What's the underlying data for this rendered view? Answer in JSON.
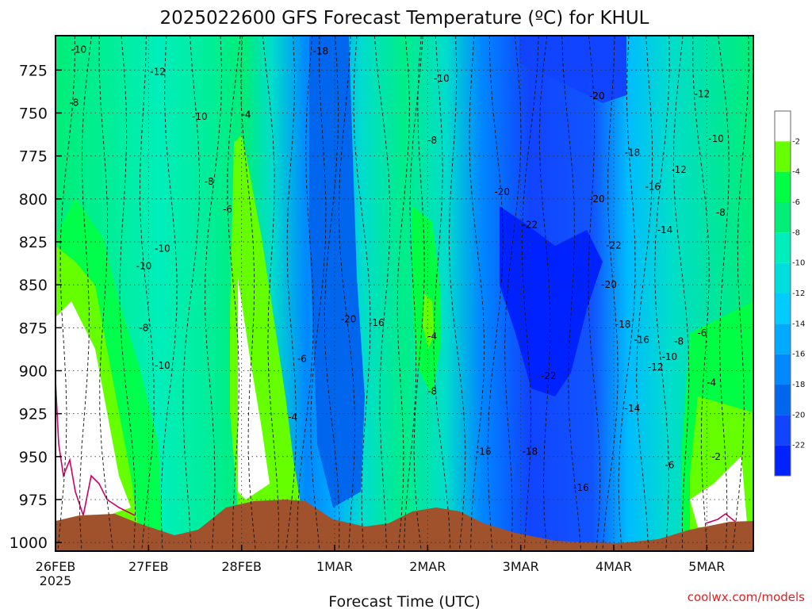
{
  "chart_data": {
    "type": "contour",
    "title": "2025022600 GFS Forecast Temperature (ºC) for KHUL",
    "xlabel": "Forecast Time (UTC)",
    "ylabel": "",
    "x_ticks": [
      "26FEB",
      "27FEB",
      "28FEB",
      "1MAR",
      "2MAR",
      "3MAR",
      "4MAR",
      "5MAR"
    ],
    "x_tick_sub": "2025",
    "x_range_days": [
      0,
      7.5
    ],
    "y_ticks": [
      725,
      750,
      775,
      800,
      825,
      850,
      875,
      900,
      925,
      950,
      975,
      1000
    ],
    "y_range_hpa": [
      1005,
      705
    ],
    "y_direction": "pressure decreasing upward",
    "grid": true,
    "colorbar": {
      "labels": [
        "-2",
        "-4",
        "-6",
        "-8",
        "-10",
        "-12",
        "-14",
        "-16",
        "-18",
        "-20",
        "-22"
      ],
      "colors": [
        "#ffffff",
        "#66ff00",
        "#00ff44",
        "#00ee77",
        "#00eebb",
        "#00dddd",
        "#00ccff",
        "#00aaff",
        "#0088ff",
        "#0066ee",
        "#1144ff",
        "#0022ff"
      ]
    },
    "contour_labels": [
      {
        "text": "-10",
        "d": 0.25,
        "p": 713
      },
      {
        "text": "-12",
        "d": 1.1,
        "p": 726
      },
      {
        "text": "-8",
        "d": 0.2,
        "p": 744
      },
      {
        "text": "-10",
        "d": 1.55,
        "p": 752
      },
      {
        "text": "-4",
        "d": 2.05,
        "p": 751
      },
      {
        "text": "-8",
        "d": 1.65,
        "p": 790
      },
      {
        "text": "-6",
        "d": 1.85,
        "p": 806
      },
      {
        "text": "-10",
        "d": 1.15,
        "p": 829
      },
      {
        "text": "-10",
        "d": 0.95,
        "p": 839
      },
      {
        "text": "-8",
        "d": 0.95,
        "p": 875
      },
      {
        "text": "-10",
        "d": 1.15,
        "p": 897
      },
      {
        "text": "-6",
        "d": 2.65,
        "p": 893
      },
      {
        "text": "-4",
        "d": 2.55,
        "p": 927
      },
      {
        "text": "-18",
        "d": 2.85,
        "p": 714
      },
      {
        "text": "-10",
        "d": 4.15,
        "p": 730
      },
      {
        "text": "-8",
        "d": 4.05,
        "p": 766
      },
      {
        "text": "-20",
        "d": 3.15,
        "p": 870
      },
      {
        "text": "-16",
        "d": 3.45,
        "p": 872
      },
      {
        "text": "-4",
        "d": 4.05,
        "p": 880
      },
      {
        "text": "-8",
        "d": 4.05,
        "p": 912
      },
      {
        "text": "-16",
        "d": 4.6,
        "p": 947
      },
      {
        "text": "-18",
        "d": 5.1,
        "p": 947
      },
      {
        "text": "-20",
        "d": 4.8,
        "p": 796
      },
      {
        "text": "-22",
        "d": 5.1,
        "p": 815
      },
      {
        "text": "-22",
        "d": 5.3,
        "p": 903
      },
      {
        "text": "-20",
        "d": 5.82,
        "p": 740
      },
      {
        "text": "-18",
        "d": 6.2,
        "p": 773
      },
      {
        "text": "-16",
        "d": 6.42,
        "p": 793
      },
      {
        "text": "-20",
        "d": 5.82,
        "p": 800
      },
      {
        "text": "-22",
        "d": 6.0,
        "p": 827
      },
      {
        "text": "-20",
        "d": 5.95,
        "p": 850
      },
      {
        "text": "-18",
        "d": 6.1,
        "p": 873
      },
      {
        "text": "-16",
        "d": 6.3,
        "p": 882
      },
      {
        "text": "-14",
        "d": 6.55,
        "p": 818
      },
      {
        "text": "-12",
        "d": 6.7,
        "p": 783
      },
      {
        "text": "-12",
        "d": 6.95,
        "p": 739
      },
      {
        "text": "-14",
        "d": 6.2,
        "p": 922
      },
      {
        "text": "-12",
        "d": 6.45,
        "p": 898
      },
      {
        "text": "-10",
        "d": 6.6,
        "p": 892
      },
      {
        "text": "-8",
        "d": 6.7,
        "p": 883
      },
      {
        "text": "-6",
        "d": 6.95,
        "p": 878
      },
      {
        "text": "-16",
        "d": 5.65,
        "p": 968
      },
      {
        "text": "-6",
        "d": 6.6,
        "p": 955
      },
      {
        "text": "-2",
        "d": 7.1,
        "p": 950
      },
      {
        "text": "-4",
        "d": 7.05,
        "p": 907
      },
      {
        "text": "-8",
        "d": 7.15,
        "p": 808
      },
      {
        "text": "-10",
        "d": 7.1,
        "p": 765
      }
    ]
  },
  "footer": {
    "credit": "coolwx.com/models"
  }
}
